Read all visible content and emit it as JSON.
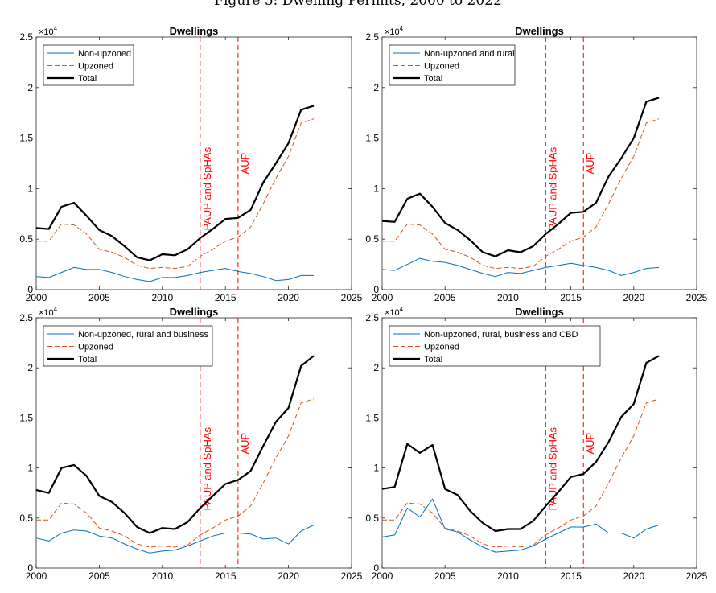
{
  "figure_title": "Figure 5: Dwelling Permits, 2000 to 2022",
  "colors": {
    "non_upzoned": "#0072BD",
    "upzoned": "#D95319",
    "total": "#000000",
    "vline": "#FF0000",
    "axis": "#262626"
  },
  "chart_data": [
    {
      "type": "line",
      "title": "Dwellings",
      "multiplier_label": "×10",
      "multiplier_exp": "4",
      "x_ticks": [
        "2000",
        "2005",
        "2010",
        "2015",
        "2020",
        "2025"
      ],
      "y_ticks": [
        "0",
        "0.5",
        "1",
        "1.5",
        "2",
        "2.5"
      ],
      "xlim": [
        2000,
        2025
      ],
      "ylim": [
        0,
        2.5
      ],
      "vlines": [
        {
          "x": 2013,
          "label": "PAUP and SpHAs"
        },
        {
          "x": 2016,
          "label": "AUP"
        }
      ],
      "x": [
        2000,
        2001,
        2002,
        2003,
        2004,
        2005,
        2006,
        2007,
        2008,
        2009,
        2010,
        2011,
        2012,
        2013,
        2014,
        2015,
        2016,
        2017,
        2018,
        2019,
        2020,
        2021,
        2022
      ],
      "series": [
        {
          "name": "Non-upzoned",
          "key": "non_upzoned",
          "style": "solid",
          "values": [
            0.13,
            0.12,
            0.17,
            0.22,
            0.2,
            0.2,
            0.17,
            0.13,
            0.1,
            0.08,
            0.12,
            0.12,
            0.14,
            0.17,
            0.19,
            0.21,
            0.18,
            0.16,
            0.13,
            0.09,
            0.1,
            0.14,
            0.14
          ]
        },
        {
          "name": "Upzoned",
          "key": "upzoned",
          "style": "dashed",
          "values": [
            0.48,
            0.48,
            0.65,
            0.64,
            0.55,
            0.4,
            0.37,
            0.32,
            0.24,
            0.21,
            0.22,
            0.21,
            0.23,
            0.33,
            0.4,
            0.48,
            0.52,
            0.62,
            0.85,
            1.1,
            1.32,
            1.65,
            1.69
          ]
        },
        {
          "name": "Total",
          "key": "total",
          "style": "bold",
          "values": [
            0.61,
            0.6,
            0.82,
            0.86,
            0.73,
            0.59,
            0.53,
            0.43,
            0.32,
            0.29,
            0.35,
            0.34,
            0.4,
            0.51,
            0.6,
            0.7,
            0.71,
            0.79,
            1.06,
            1.25,
            1.45,
            1.78,
            1.82
          ]
        }
      ]
    },
    {
      "type": "line",
      "title": "Dwellings",
      "multiplier_label": "×10",
      "multiplier_exp": "4",
      "x_ticks": [
        "2000",
        "2005",
        "2010",
        "2015",
        "2020",
        "2025"
      ],
      "y_ticks": [
        "0",
        "0.5",
        "1",
        "1.5",
        "2",
        "2.5"
      ],
      "xlim": [
        2000,
        2025
      ],
      "ylim": [
        0,
        2.5
      ],
      "vlines": [
        {
          "x": 2013,
          "label": "PAUP and SpHAs"
        },
        {
          "x": 2016,
          "label": "AUP"
        }
      ],
      "x": [
        2000,
        2001,
        2002,
        2003,
        2004,
        2005,
        2006,
        2007,
        2008,
        2009,
        2010,
        2011,
        2012,
        2013,
        2014,
        2015,
        2016,
        2017,
        2018,
        2019,
        2020,
        2021,
        2022
      ],
      "series": [
        {
          "name": "Non-upzoned and rural",
          "key": "non_upzoned",
          "style": "solid",
          "values": [
            0.2,
            0.19,
            0.25,
            0.31,
            0.28,
            0.27,
            0.24,
            0.2,
            0.16,
            0.13,
            0.17,
            0.16,
            0.19,
            0.22,
            0.24,
            0.26,
            0.24,
            0.22,
            0.19,
            0.14,
            0.17,
            0.21,
            0.22
          ]
        },
        {
          "name": "Upzoned",
          "key": "upzoned",
          "style": "dashed",
          "values": [
            0.48,
            0.48,
            0.65,
            0.64,
            0.55,
            0.4,
            0.37,
            0.32,
            0.24,
            0.21,
            0.22,
            0.21,
            0.23,
            0.33,
            0.4,
            0.48,
            0.52,
            0.62,
            0.85,
            1.1,
            1.32,
            1.65,
            1.69
          ]
        },
        {
          "name": "Total",
          "key": "total",
          "style": "bold",
          "values": [
            0.68,
            0.67,
            0.9,
            0.95,
            0.82,
            0.66,
            0.59,
            0.49,
            0.37,
            0.33,
            0.39,
            0.37,
            0.43,
            0.55,
            0.65,
            0.76,
            0.77,
            0.86,
            1.12,
            1.3,
            1.5,
            1.86,
            1.9
          ]
        }
      ]
    },
    {
      "type": "line",
      "title": "Dwellings",
      "multiplier_label": "×10",
      "multiplier_exp": "4",
      "x_ticks": [
        "2000",
        "2005",
        "2010",
        "2015",
        "2020",
        "2025"
      ],
      "y_ticks": [
        "0",
        "0.5",
        "1",
        "1.5",
        "2",
        "2.5"
      ],
      "xlim": [
        2000,
        2025
      ],
      "ylim": [
        0,
        2.5
      ],
      "vlines": [
        {
          "x": 2013,
          "label": "PAUP and SpHAs"
        },
        {
          "x": 2016,
          "label": "AUP"
        }
      ],
      "x": [
        2000,
        2001,
        2002,
        2003,
        2004,
        2005,
        2006,
        2007,
        2008,
        2009,
        2010,
        2011,
        2012,
        2013,
        2014,
        2015,
        2016,
        2017,
        2018,
        2019,
        2020,
        2021,
        2022
      ],
      "series": [
        {
          "name": "Non-upzoned, rural and business",
          "key": "non_upzoned",
          "style": "solid",
          "values": [
            0.3,
            0.27,
            0.35,
            0.38,
            0.37,
            0.32,
            0.3,
            0.24,
            0.19,
            0.15,
            0.17,
            0.18,
            0.22,
            0.27,
            0.32,
            0.35,
            0.35,
            0.34,
            0.29,
            0.3,
            0.24,
            0.37,
            0.43
          ]
        },
        {
          "name": "Upzoned",
          "key": "upzoned",
          "style": "dashed",
          "values": [
            0.48,
            0.48,
            0.65,
            0.64,
            0.55,
            0.4,
            0.37,
            0.32,
            0.24,
            0.21,
            0.22,
            0.21,
            0.23,
            0.33,
            0.4,
            0.48,
            0.52,
            0.62,
            0.85,
            1.1,
            1.32,
            1.65,
            1.69
          ]
        },
        {
          "name": "Total",
          "key": "total",
          "style": "bold",
          "values": [
            0.78,
            0.75,
            1.0,
            1.03,
            0.92,
            0.72,
            0.66,
            0.55,
            0.41,
            0.35,
            0.4,
            0.39,
            0.46,
            0.6,
            0.72,
            0.84,
            0.88,
            0.97,
            1.22,
            1.46,
            1.6,
            2.02,
            2.12
          ]
        }
      ]
    },
    {
      "type": "line",
      "title": "Dwellings",
      "multiplier_label": "×10",
      "multiplier_exp": "4",
      "x_ticks": [
        "2000",
        "2005",
        "2010",
        "2015",
        "2020",
        "2025"
      ],
      "y_ticks": [
        "0",
        "0.5",
        "1",
        "1.5",
        "2",
        "2.5"
      ],
      "xlim": [
        2000,
        2025
      ],
      "ylim": [
        0,
        2.5
      ],
      "vlines": [
        {
          "x": 2013,
          "label": "PAUP and SpHAs"
        },
        {
          "x": 2016,
          "label": "AUP"
        }
      ],
      "x": [
        2000,
        2001,
        2002,
        2003,
        2004,
        2005,
        2006,
        2007,
        2008,
        2009,
        2010,
        2011,
        2012,
        2013,
        2014,
        2015,
        2016,
        2017,
        2018,
        2019,
        2020,
        2021,
        2022
      ],
      "series": [
        {
          "name": "Non-upzoned, rural, business and CBD",
          "key": "non_upzoned",
          "style": "solid",
          "values": [
            0.31,
            0.33,
            0.6,
            0.51,
            0.69,
            0.39,
            0.36,
            0.28,
            0.21,
            0.16,
            0.17,
            0.18,
            0.22,
            0.29,
            0.35,
            0.41,
            0.41,
            0.44,
            0.35,
            0.35,
            0.3,
            0.39,
            0.43
          ]
        },
        {
          "name": "Upzoned",
          "key": "upzoned",
          "style": "dashed",
          "values": [
            0.48,
            0.48,
            0.65,
            0.64,
            0.55,
            0.4,
            0.37,
            0.32,
            0.24,
            0.21,
            0.22,
            0.21,
            0.23,
            0.33,
            0.4,
            0.48,
            0.52,
            0.62,
            0.85,
            1.1,
            1.32,
            1.65,
            1.69
          ]
        },
        {
          "name": "Total",
          "key": "total",
          "style": "bold",
          "values": [
            0.79,
            0.81,
            1.24,
            1.15,
            1.23,
            0.79,
            0.73,
            0.57,
            0.45,
            0.37,
            0.39,
            0.39,
            0.47,
            0.62,
            0.76,
            0.91,
            0.94,
            1.06,
            1.26,
            1.51,
            1.64,
            2.05,
            2.12
          ]
        }
      ]
    }
  ]
}
